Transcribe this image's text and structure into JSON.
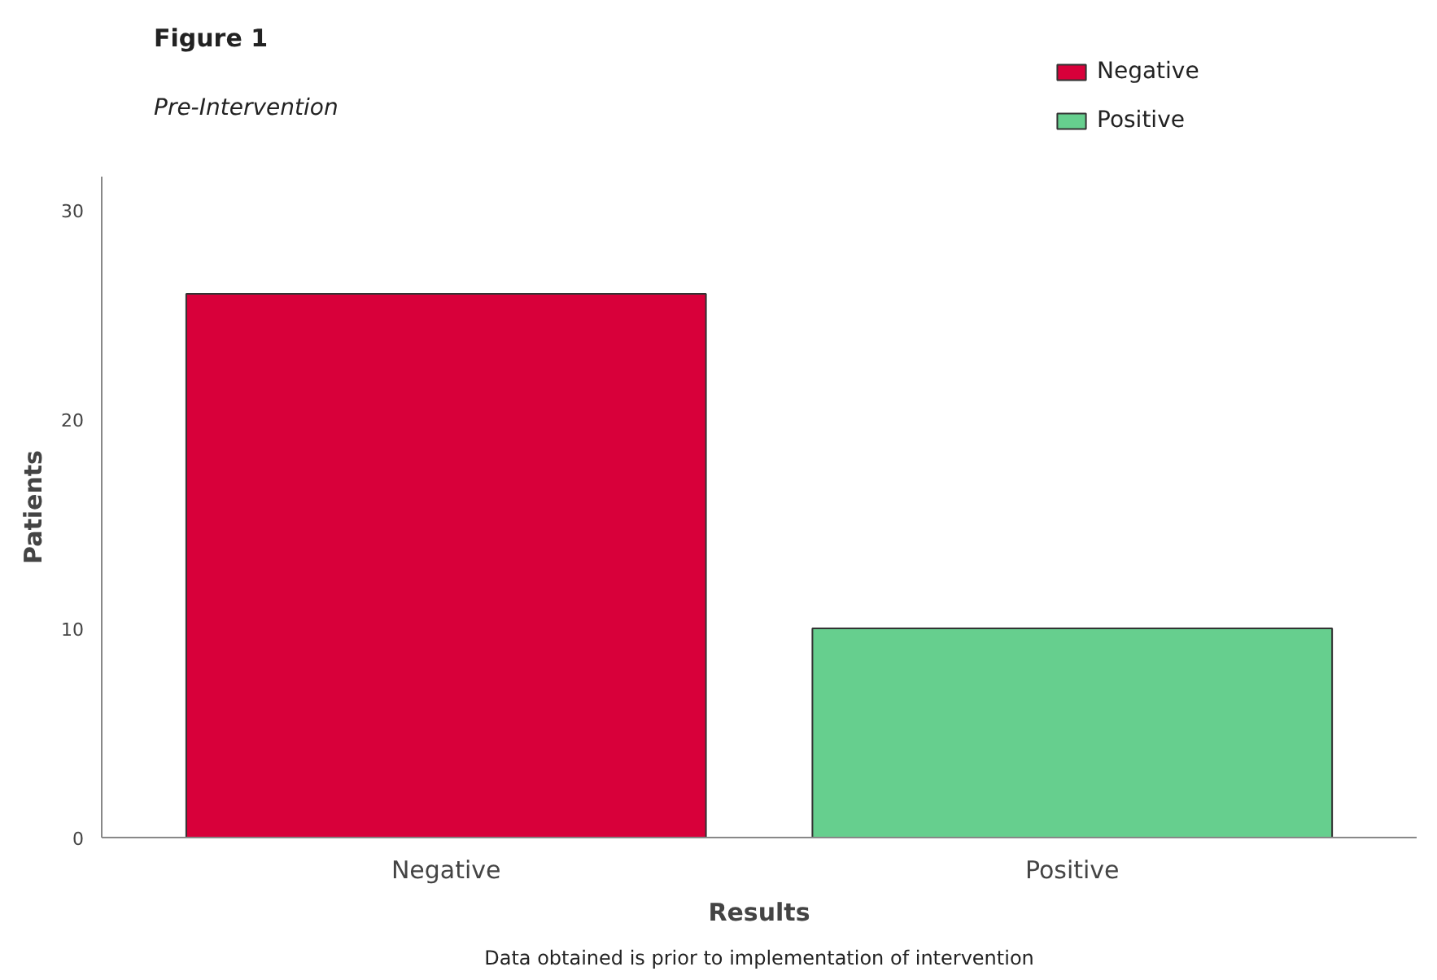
{
  "chart_data": {
    "type": "bar",
    "title": "Figure 1",
    "subtitle": "Pre-Intervention",
    "xlabel": "Results",
    "ylabel": "Patients",
    "annotations": [
      "Data obtained is prior to implementation of intervention"
    ],
    "categories": [
      "Negative",
      "Positive"
    ],
    "series": [
      {
        "name": "Negative",
        "color": "#d8003a",
        "values": [
          26,
          null
        ]
      },
      {
        "name": "Positive",
        "color": "#66cf8e",
        "values": [
          null,
          10
        ]
      }
    ],
    "ylim": [
      0,
      31.6
    ],
    "yticks": [
      0,
      10,
      20,
      30
    ],
    "grid": false,
    "legend": "top right"
  }
}
